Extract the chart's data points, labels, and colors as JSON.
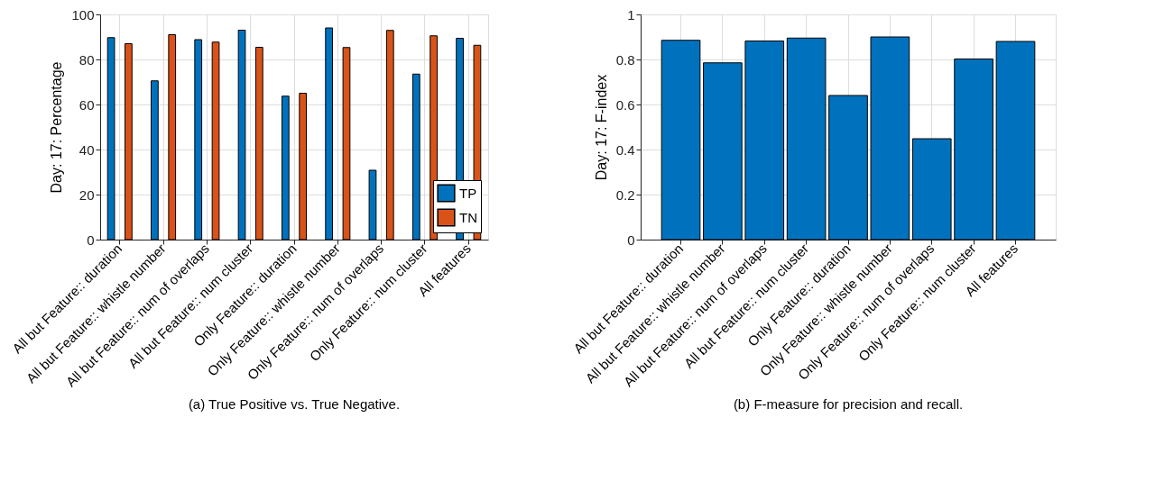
{
  "chart_data": [
    {
      "type": "bar",
      "ylabel": "Day: 17: Percentage",
      "categories": [
        "All but Feature:: duration",
        "All but Feature:: whistle number",
        "All but Feature:: num of overlaps",
        "All but Feature:: num cluster",
        "Only Feature:: duration",
        "Only Feature:: whistle number",
        "Only Feature:: num of overlaps",
        "Only Feature:: num cluster",
        "All features"
      ],
      "series": [
        {
          "name": "TP",
          "color": "#0072bd",
          "values": [
            89.7,
            70.5,
            88.8,
            93.0,
            63.7,
            94.0,
            30.8,
            73.5,
            89.4
          ]
        },
        {
          "name": "TN",
          "color": "#d95319",
          "values": [
            87.0,
            91.0,
            87.7,
            85.4,
            65.0,
            85.3,
            92.9,
            90.5,
            86.3
          ]
        }
      ],
      "ylim": [
        0,
        100
      ],
      "yticks": [
        0,
        20,
        40,
        60,
        80,
        100
      ],
      "grid": true,
      "legend": "bottom right",
      "annotations": [
        "(a) True Positive vs. True Negative."
      ]
    },
    {
      "type": "bar",
      "ylabel": "Day: 17: F-index",
      "categories": [
        "All but Feature:: duration",
        "All but Feature:: whistle number",
        "All but Feature:: num of overlaps",
        "All but Feature:: num cluster",
        "Only Feature:: duration",
        "Only Feature:: whistle number",
        "Only Feature:: num of overlaps",
        "Only Feature:: num cluster",
        "All features"
      ],
      "values": [
        0.885,
        0.785,
        0.882,
        0.895,
        0.64,
        0.9,
        0.448,
        0.802,
        0.88
      ],
      "color": "#0072bd",
      "ylim": [
        0,
        1
      ],
      "yticks": [
        0,
        0.2,
        0.4,
        0.6,
        0.8,
        1
      ],
      "grid": true,
      "annotations": [
        "(b) F-measure for precision and recall."
      ]
    }
  ]
}
